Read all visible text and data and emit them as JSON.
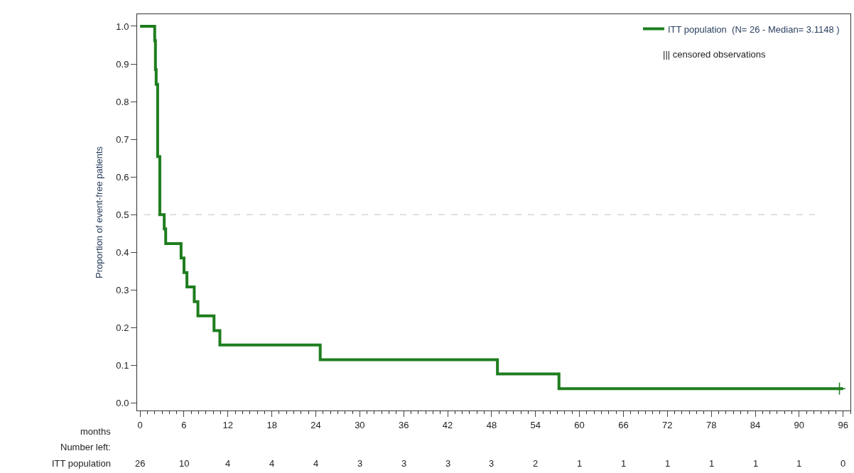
{
  "chart_data": {
    "type": "step",
    "ylabel": "Proportion of event-free patients",
    "x": [
      0,
      2.0,
      2.1,
      2.2,
      2.4,
      2.7,
      3.1,
      3.3,
      3.5,
      5.6,
      6.0,
      6.4,
      7.4,
      7.9,
      10.1,
      10.9,
      24.6,
      48.8,
      57.2,
      96
    ],
    "series": [
      {
        "name": "ITT population  (N= 26 - Median= 3.1148 )",
        "color": "#1e7d1e",
        "values": [
          1.0,
          0.962,
          0.885,
          0.846,
          0.654,
          0.5,
          0.5,
          0.462,
          0.423,
          0.385,
          0.346,
          0.308,
          0.269,
          0.231,
          0.192,
          0.154,
          0.115,
          0.077,
          0.038,
          0.038
        ]
      },
      {
        "type": "scatter",
        "marker": "cross",
        "color": "#1e7d1e",
        "x": [
          95.5
        ],
        "values": [
          0.038
        ]
      }
    ],
    "xlim": [
      -0.4,
      97
    ],
    "ylim": [
      -0.02,
      1.032
    ],
    "xticks": [
      0,
      6,
      12,
      18,
      24,
      30,
      36,
      42,
      48,
      54,
      60,
      66,
      72,
      78,
      84,
      90,
      96
    ],
    "yticks": [
      {
        "value": 0,
        "label": "0.0"
      },
      {
        "value": 0.1,
        "label": "0.1"
      },
      {
        "value": 0.2,
        "label": "0.2"
      },
      {
        "value": 0.3,
        "label": "0.3"
      },
      {
        "value": 0.4,
        "label": "0.4"
      },
      {
        "value": 0.5,
        "label": "0.5"
      },
      {
        "value": 0.6,
        "label": "0.6"
      },
      {
        "value": 0.7,
        "label": "0.7"
      },
      {
        "value": 0.8,
        "label": "0.8"
      },
      {
        "value": 0.9,
        "label": "0.9"
      },
      {
        "value": 1.0,
        "label": "1.0"
      }
    ],
    "ref_lines": [
      {
        "axis": "y",
        "value": 0.5,
        "color": "#c0c0c0",
        "line_style": "dashed"
      }
    ],
    "legend": "top right",
    "grid": false,
    "annotations": [
      "||| censored observations",
      "months",
      "Number left:",
      "ITT population",
      "26",
      "10",
      "4",
      "4",
      "4",
      "3",
      "3",
      "3",
      "3",
      "2",
      "1",
      "1",
      "1",
      "1",
      "1",
      "1",
      "0"
    ]
  }
}
